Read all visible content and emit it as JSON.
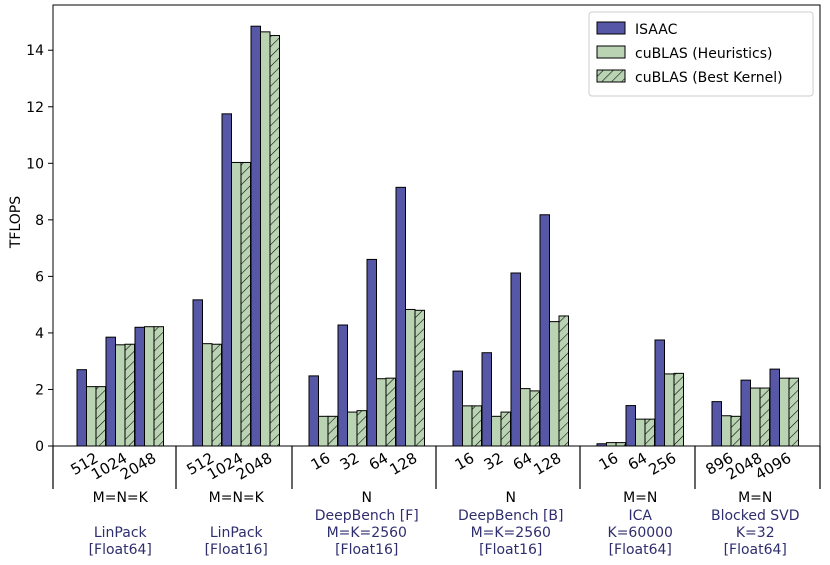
{
  "chart_data": {
    "type": "bar",
    "ylabel": "TFLOPS",
    "ylim": [
      0,
      15.6
    ],
    "yticks": [
      0,
      2,
      4,
      6,
      8,
      10,
      12,
      14
    ],
    "colors": {
      "ISAAC": "#5757a8",
      "cuBLAS (Heuristics)": "#b9d3b3",
      "cuBLAS (Best Kernel)": "#b9d3b3"
    },
    "series": [
      {
        "name": "ISAAC",
        "hatch": false
      },
      {
        "name": "cuBLAS (Heuristics)",
        "hatch": false
      },
      {
        "name": "cuBLAS (Best Kernel)",
        "hatch": true
      }
    ],
    "legend_position": "top-right",
    "groups": [
      {
        "param": "M=N=K",
        "desc": [
          "LinPack",
          "[Float64]"
        ],
        "categories": [
          "512",
          "1024",
          "2048"
        ],
        "values": [
          [
            2.7,
            2.1,
            2.1
          ],
          [
            3.85,
            3.58,
            3.6
          ],
          [
            4.2,
            4.22,
            4.22
          ]
        ]
      },
      {
        "param": "M=N=K",
        "desc": [
          "LinPack",
          "[Float16]"
        ],
        "categories": [
          "512",
          "1024",
          "2048"
        ],
        "values": [
          [
            5.17,
            3.62,
            3.6
          ],
          [
            11.75,
            10.03,
            10.03
          ],
          [
            14.85,
            14.65,
            14.52
          ]
        ]
      },
      {
        "param": "N",
        "desc": [
          "DeepBench [F]",
          "M=K=2560",
          "[Float16]"
        ],
        "categories": [
          "16",
          "32",
          "64",
          "128"
        ],
        "values": [
          [
            2.48,
            1.05,
            1.05
          ],
          [
            4.28,
            1.2,
            1.25
          ],
          [
            6.6,
            2.38,
            2.4
          ],
          [
            9.15,
            4.83,
            4.8
          ]
        ]
      },
      {
        "param": "N",
        "desc": [
          "DeepBench [B]",
          "M=K=2560",
          "[Float16]"
        ],
        "categories": [
          "16",
          "32",
          "64",
          "128"
        ],
        "values": [
          [
            2.65,
            1.42,
            1.42
          ],
          [
            3.3,
            1.05,
            1.2
          ],
          [
            6.12,
            2.03,
            1.95
          ],
          [
            8.18,
            4.4,
            4.6
          ]
        ]
      },
      {
        "param": "M=N",
        "desc": [
          "ICA",
          "K=60000",
          "[Float64]"
        ],
        "categories": [
          "16",
          "64",
          "256"
        ],
        "values": [
          [
            0.08,
            0.12,
            0.12
          ],
          [
            1.43,
            0.95,
            0.95
          ],
          [
            3.75,
            2.55,
            2.57
          ]
        ]
      },
      {
        "param": "M=N",
        "desc": [
          "Blocked SVD",
          "K=32",
          "[Float64]"
        ],
        "categories": [
          "896",
          "2048",
          "4096"
        ],
        "values": [
          [
            1.57,
            1.07,
            1.05
          ],
          [
            2.33,
            2.05,
            2.05
          ],
          [
            2.72,
            2.4,
            2.4
          ]
        ]
      }
    ]
  }
}
